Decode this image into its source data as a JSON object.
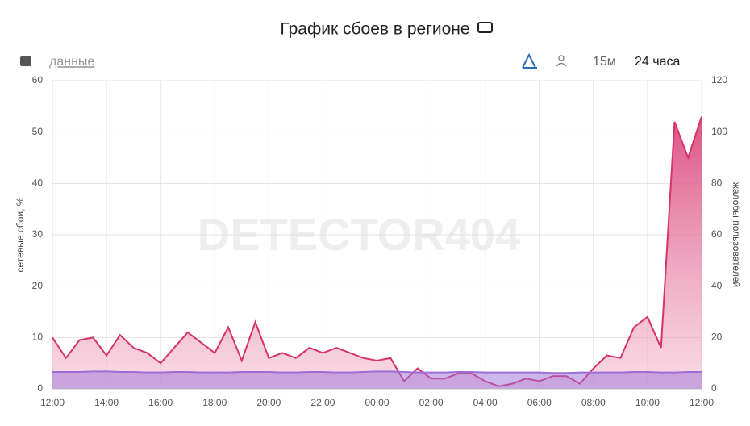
{
  "chart_data": {
    "type": "area",
    "title": "График сбоев в регионе",
    "toolbar": {
      "data_link": "данные",
      "interval": "15м",
      "range": "24 часа"
    },
    "watermark": "DETECTOR404",
    "ylabel": "сетевые сбои, %",
    "y2label": "жалобы пользователей",
    "x": [
      0,
      0.5,
      1,
      1.5,
      2,
      2.5,
      3,
      3.5,
      4,
      4.5,
      5,
      5.5,
      6,
      6.5,
      7,
      7.5,
      8,
      8.5,
      9,
      9.5,
      10,
      10.5,
      11,
      11.5,
      12,
      12.5,
      13,
      13.5,
      14,
      14.5,
      15,
      15.5,
      16,
      16.5,
      17,
      17.5,
      18,
      18.5,
      19,
      19.5,
      20,
      20.5,
      21,
      21.5,
      22,
      22.5,
      23,
      23.5,
      24
    ],
    "xlim": [
      0,
      24
    ],
    "xticks": [
      {
        "value": 0,
        "label": "12:00"
      },
      {
        "value": 2,
        "label": "14:00"
      },
      {
        "value": 4,
        "label": "16:00"
      },
      {
        "value": 6,
        "label": "18:00"
      },
      {
        "value": 8,
        "label": "20:00"
      },
      {
        "value": 10,
        "label": "22:00"
      },
      {
        "value": 12,
        "label": "00:00"
      },
      {
        "value": 14,
        "label": "02:00"
      },
      {
        "value": 16,
        "label": "04:00"
      },
      {
        "value": 18,
        "label": "06:00"
      },
      {
        "value": 20,
        "label": "08:00"
      },
      {
        "value": 22,
        "label": "10:00"
      },
      {
        "value": 24,
        "label": "12:00"
      }
    ],
    "ylim": [
      0,
      60
    ],
    "yticks": [
      0,
      10,
      20,
      30,
      40,
      50,
      60
    ],
    "y2lim": [
      0,
      120
    ],
    "y2ticks": [
      0,
      20,
      40,
      60,
      80,
      100,
      120
    ],
    "grid": true,
    "series": [
      {
        "name": "жалобы пользователей",
        "color": "#d6336c",
        "axis": "y2",
        "values": [
          20,
          12,
          19,
          20,
          13,
          21,
          16,
          14,
          10,
          16,
          22,
          18,
          14,
          24,
          11,
          26,
          12,
          14,
          12,
          16,
          14,
          16,
          14,
          12,
          11,
          12,
          3,
          8,
          4,
          4,
          6,
          6,
          3,
          1,
          2,
          4,
          3,
          5,
          5,
          2,
          8,
          13,
          12,
          24,
          28,
          16,
          104,
          90,
          106
        ]
      },
      {
        "name": "сетевые сбои, %",
        "color": "#9b6fd6",
        "values": [
          3.3,
          3.3,
          3.3,
          3.4,
          3.4,
          3.3,
          3.3,
          3.2,
          3.2,
          3.3,
          3.3,
          3.2,
          3.2,
          3.2,
          3.3,
          3.3,
          3.3,
          3.2,
          3.2,
          3.3,
          3.3,
          3.2,
          3.2,
          3.3,
          3.4,
          3.4,
          3.3,
          3.2,
          3.2,
          3.2,
          3.3,
          3.3,
          3.2,
          3.2,
          3.2,
          3.2,
          3.2,
          3.1,
          3.1,
          3.2,
          3.2,
          3.2,
          3.2,
          3.3,
          3.3,
          3.2,
          3.2,
          3.3,
          3.3
        ]
      }
    ]
  }
}
